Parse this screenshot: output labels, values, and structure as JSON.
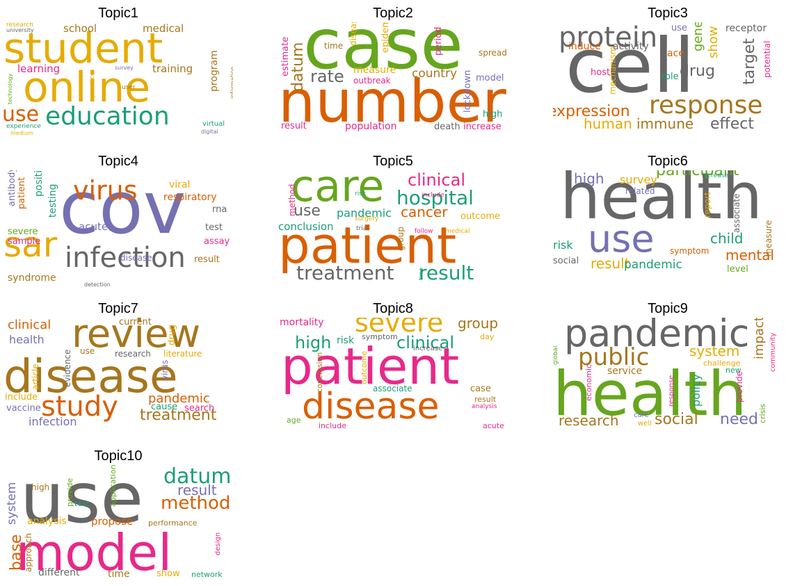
{
  "colors": {
    "orange": "#d95f02",
    "purple": "#7570b3",
    "pink": "#e7298a",
    "green": "#66a61e",
    "gold": "#e6ab02",
    "brown": "#a6761d",
    "gray": "#666666",
    "teal": "#1b9e77"
  },
  "topics": [
    {
      "title": "Topic1",
      "words": [
        {
          "t": "student",
          "c": "gold",
          "s": 60
        },
        {
          "t": "online",
          "c": "gold",
          "s": 60
        },
        {
          "t": "education",
          "c": "teal",
          "s": 36
        },
        {
          "t": "use",
          "c": "orange",
          "s": 30
        },
        {
          "t": "school",
          "c": "brown",
          "s": 15
        },
        {
          "t": "medical",
          "c": "brown",
          "s": 15
        },
        {
          "t": "training",
          "c": "brown",
          "s": 15
        },
        {
          "t": "learning",
          "c": "pink",
          "s": 15
        },
        {
          "t": "program",
          "c": "brown",
          "s": 14,
          "v": true
        },
        {
          "t": "research",
          "c": "gold",
          "s": 9
        },
        {
          "t": "university",
          "c": "gray",
          "s": 8
        },
        {
          "t": "technology",
          "c": "green",
          "s": 8,
          "v": true
        },
        {
          "t": "practice",
          "c": "gold",
          "s": 9,
          "v": true
        },
        {
          "t": "survey",
          "c": "purple",
          "s": 8
        },
        {
          "t": "user",
          "c": "brown",
          "s": 9
        },
        {
          "t": "information",
          "c": "brown",
          "s": 8,
          "v": true
        },
        {
          "t": "virtual",
          "c": "teal",
          "s": 10
        },
        {
          "t": "digital",
          "c": "purple",
          "s": 8
        },
        {
          "t": "experience",
          "c": "teal",
          "s": 9
        },
        {
          "t": "medium",
          "c": "gold",
          "s": 8
        }
      ]
    },
    {
      "title": "Topic2",
      "words": [
        {
          "t": "case",
          "c": "green",
          "s": 100
        },
        {
          "t": "number",
          "c": "orange",
          "s": 84
        },
        {
          "t": "rate",
          "c": "gray",
          "s": 24
        },
        {
          "t": "datum",
          "c": "brown",
          "s": 22,
          "v": true
        },
        {
          "t": "country",
          "c": "brown",
          "s": 17
        },
        {
          "t": "estimate",
          "c": "pink",
          "s": 13,
          "v": true
        },
        {
          "t": "time",
          "c": "brown",
          "s": 12
        },
        {
          "t": "disease",
          "c": "gold",
          "s": 12,
          "v": true
        },
        {
          "t": "epidemic",
          "c": "gold",
          "s": 13,
          "v": true
        },
        {
          "t": "period",
          "c": "pink",
          "s": 13,
          "v": true
        },
        {
          "t": "spread",
          "c": "brown",
          "s": 12
        },
        {
          "t": "measure",
          "c": "gold",
          "s": 14
        },
        {
          "t": "outbreak",
          "c": "pink",
          "s": 12
        },
        {
          "t": "model",
          "c": "purple",
          "s": 13
        },
        {
          "t": "lockdown",
          "c": "purple",
          "s": 13,
          "v": true
        },
        {
          "t": "high",
          "c": "teal",
          "s": 13
        },
        {
          "t": "result",
          "c": "pink",
          "s": 13
        },
        {
          "t": "population",
          "c": "pink",
          "s": 14
        },
        {
          "t": "death",
          "c": "gray",
          "s": 13
        },
        {
          "t": "increase",
          "c": "pink",
          "s": 13
        }
      ]
    },
    {
      "title": "Topic3",
      "words": [
        {
          "t": "cell",
          "c": "gray",
          "s": 108
        },
        {
          "t": "protein",
          "c": "gray",
          "s": 40
        },
        {
          "t": "response",
          "c": "brown",
          "s": 36
        },
        {
          "t": "expression",
          "c": "orange",
          "s": 22
        },
        {
          "t": "human",
          "c": "gold",
          "s": 20
        },
        {
          "t": "immune",
          "c": "brown",
          "s": 20
        },
        {
          "t": "effect",
          "c": "gray",
          "s": 22
        },
        {
          "t": "drug",
          "c": "gray",
          "s": 22
        },
        {
          "t": "target",
          "c": "gray",
          "s": 22,
          "v": true
        },
        {
          "t": "gene",
          "c": "green",
          "s": 18,
          "v": true
        },
        {
          "t": "show",
          "c": "gold",
          "s": 18,
          "v": true
        },
        {
          "t": "use",
          "c": "purple",
          "s": 13
        },
        {
          "t": "receptor",
          "c": "gray",
          "s": 14
        },
        {
          "t": "induce",
          "c": "orange",
          "s": 14
        },
        {
          "t": "activity",
          "c": "gray",
          "s": 14
        },
        {
          "t": "ace",
          "c": "orange",
          "s": 14
        },
        {
          "t": "mechanism",
          "c": "gold",
          "s": 12,
          "v": true
        },
        {
          "t": "host",
          "c": "pink",
          "s": 13
        },
        {
          "t": "role",
          "c": "teal",
          "s": 13
        },
        {
          "t": "potential",
          "c": "pink",
          "s": 12,
          "v": true
        }
      ]
    },
    {
      "title": "Topic4",
      "words": [
        {
          "t": "cov",
          "c": "purple",
          "s": 104
        },
        {
          "t": "sar",
          "c": "gold",
          "s": 50
        },
        {
          "t": "infection",
          "c": "gray",
          "s": 40
        },
        {
          "t": "virus",
          "c": "orange",
          "s": 38
        },
        {
          "t": "respiratory",
          "c": "orange",
          "s": 14
        },
        {
          "t": "viral",
          "c": "gold",
          "s": 14
        },
        {
          "t": "rna",
          "c": "gray",
          "s": 13
        },
        {
          "t": "test",
          "c": "gray",
          "s": 13
        },
        {
          "t": "assay",
          "c": "pink",
          "s": 13
        },
        {
          "t": "acute",
          "c": "purple",
          "s": 15
        },
        {
          "t": "result",
          "c": "brown",
          "s": 13
        },
        {
          "t": "disease",
          "c": "purple",
          "s": 12
        },
        {
          "t": "syndrome",
          "c": "brown",
          "s": 14
        },
        {
          "t": "detection",
          "c": "gray",
          "s": 8
        },
        {
          "t": "sample",
          "c": "pink",
          "s": 13
        },
        {
          "t": "severe",
          "c": "green",
          "s": 13
        },
        {
          "t": "antibody",
          "c": "purple",
          "s": 13,
          "v": true
        },
        {
          "t": "patient",
          "c": "orange",
          "s": 13,
          "v": true
        },
        {
          "t": "positive",
          "c": "teal",
          "s": 14,
          "v": true
        },
        {
          "t": "testing",
          "c": "teal",
          "s": 14,
          "v": true
        }
      ]
    },
    {
      "title": "Topic5",
      "words": [
        {
          "t": "patient",
          "c": "orange",
          "s": 72
        },
        {
          "t": "care",
          "c": "green",
          "s": 62
        },
        {
          "t": "hospital",
          "c": "teal",
          "s": 28
        },
        {
          "t": "clinical",
          "c": "pink",
          "s": 24
        },
        {
          "t": "treatment",
          "c": "gray",
          "s": 28
        },
        {
          "t": "result",
          "c": "teal",
          "s": 28
        },
        {
          "t": "use",
          "c": "gray",
          "s": 22
        },
        {
          "t": "cancer",
          "c": "orange",
          "s": 20
        },
        {
          "t": "pandemic",
          "c": "teal",
          "s": 16
        },
        {
          "t": "conclusion",
          "c": "teal",
          "s": 15
        },
        {
          "t": "outcome",
          "c": "gold",
          "s": 13
        },
        {
          "t": "method",
          "c": "pink",
          "s": 12,
          "v": true
        },
        {
          "t": "risk",
          "c": "teal",
          "s": 9
        },
        {
          "t": "include",
          "c": "pink",
          "s": 9
        },
        {
          "t": "surgery",
          "c": "gold",
          "s": 9
        },
        {
          "t": "trial",
          "c": "gray",
          "s": 9
        },
        {
          "t": "follow",
          "c": "pink",
          "s": 9
        },
        {
          "t": "medical",
          "c": "gold",
          "s": 9
        },
        {
          "t": "group",
          "c": "brown",
          "s": 12,
          "v": true
        },
        {
          "t": "time",
          "c": "teal",
          "s": 8,
          "v": true
        }
      ]
    },
    {
      "title": "Topic6",
      "words": [
        {
          "t": "health",
          "c": "gray",
          "s": 92
        },
        {
          "t": "use",
          "c": "purple",
          "s": 54
        },
        {
          "t": "participant",
          "c": "green",
          "s": 22
        },
        {
          "t": "mental",
          "c": "orange",
          "s": 20
        },
        {
          "t": "child",
          "c": "teal",
          "s": 20
        },
        {
          "t": "result",
          "c": "gold",
          "s": 20
        },
        {
          "t": "pandemic",
          "c": "teal",
          "s": 17
        },
        {
          "t": "high",
          "c": "purple",
          "s": 20
        },
        {
          "t": "survey",
          "c": "gold",
          "s": 16
        },
        {
          "t": "factor",
          "c": "purple",
          "s": 13
        },
        {
          "t": "anxiety",
          "c": "teal",
          "s": 13
        },
        {
          "t": "related",
          "c": "purple",
          "s": 12
        },
        {
          "t": "increase",
          "c": "teal",
          "s": 9
        },
        {
          "t": "report",
          "c": "gold",
          "s": 12,
          "v": true
        },
        {
          "t": "associate",
          "c": "gray",
          "s": 12,
          "v": true
        },
        {
          "t": "measure",
          "c": "brown",
          "s": 12,
          "v": true
        },
        {
          "t": "risk",
          "c": "teal",
          "s": 16
        },
        {
          "t": "social",
          "c": "gray",
          "s": 13
        },
        {
          "t": "symptom",
          "c": "orange",
          "s": 12
        },
        {
          "t": "level",
          "c": "green",
          "s": 13
        }
      ]
    },
    {
      "title": "Topic7",
      "words": [
        {
          "t": "disease",
          "c": "brown",
          "s": 66
        },
        {
          "t": "review",
          "c": "brown",
          "s": 56
        },
        {
          "t": "study",
          "c": "orange",
          "s": 40
        },
        {
          "t": "treatment",
          "c": "brown",
          "s": 22
        },
        {
          "t": "pandemic",
          "c": "orange",
          "s": 18
        },
        {
          "t": "clinical",
          "c": "orange",
          "s": 18
        },
        {
          "t": "health",
          "c": "purple",
          "s": 16
        },
        {
          "t": "infection",
          "c": "purple",
          "s": 16
        },
        {
          "t": "current",
          "c": "brown",
          "s": 13
        },
        {
          "t": "drug",
          "c": "gold",
          "s": 13,
          "v": true
        },
        {
          "t": "use",
          "c": "brown",
          "s": 12
        },
        {
          "t": "evidence",
          "c": "gray",
          "s": 12,
          "v": true
        },
        {
          "t": "article",
          "c": "gold",
          "s": 12,
          "v": true
        },
        {
          "t": "research",
          "c": "gray",
          "s": 12
        },
        {
          "t": "literature",
          "c": "gold",
          "s": 12
        },
        {
          "t": "virus",
          "c": "purple",
          "s": 12,
          "v": true
        },
        {
          "t": "include",
          "c": "gold",
          "s": 13
        },
        {
          "t": "vaccine",
          "c": "purple",
          "s": 13
        },
        {
          "t": "cause",
          "c": "teal",
          "s": 13
        },
        {
          "t": "search",
          "c": "pink",
          "s": 13
        }
      ]
    },
    {
      "title": "Topic8",
      "words": [
        {
          "t": "patient",
          "c": "pink",
          "s": 72
        },
        {
          "t": "disease",
          "c": "orange",
          "s": 52
        },
        {
          "t": "severe",
          "c": "gold",
          "s": 38
        },
        {
          "t": "clinical",
          "c": "teal",
          "s": 24
        },
        {
          "t": "high",
          "c": "teal",
          "s": 24
        },
        {
          "t": "group",
          "c": "brown",
          "s": 20
        },
        {
          "t": "mortality",
          "c": "pink",
          "s": 14
        },
        {
          "t": "risk",
          "c": "teal",
          "s": 14
        },
        {
          "t": "symptom",
          "c": "gray",
          "s": 11
        },
        {
          "t": "day",
          "c": "gold",
          "s": 11
        },
        {
          "t": "increase",
          "c": "gray",
          "s": 10
        },
        {
          "t": "conclusion",
          "c": "brown",
          "s": 11,
          "v": true
        },
        {
          "t": "outcome",
          "c": "gold",
          "s": 11,
          "v": true
        },
        {
          "t": "associate",
          "c": "teal",
          "s": 12
        },
        {
          "t": "case",
          "c": "brown",
          "s": 13
        },
        {
          "t": "result",
          "c": "brown",
          "s": 11
        },
        {
          "t": "analysis",
          "c": "pink",
          "s": 9
        },
        {
          "t": "age",
          "c": "green",
          "s": 11
        },
        {
          "t": "include",
          "c": "pink",
          "s": 11
        },
        {
          "t": "acute",
          "c": "pink",
          "s": 11
        }
      ]
    },
    {
      "title": "Topic9",
      "words": [
        {
          "t": "health",
          "c": "green",
          "s": 88
        },
        {
          "t": "pandemic",
          "c": "gray",
          "s": 54
        },
        {
          "t": "public",
          "c": "brown",
          "s": 34
        },
        {
          "t": "social",
          "c": "brown",
          "s": 22
        },
        {
          "t": "need",
          "c": "purple",
          "s": 22
        },
        {
          "t": "research",
          "c": "brown",
          "s": 20
        },
        {
          "t": "system",
          "c": "gold",
          "s": 20
        },
        {
          "t": "impact",
          "c": "brown",
          "s": 18,
          "v": true
        },
        {
          "t": "policy",
          "c": "teal",
          "s": 16,
          "v": true
        },
        {
          "t": "service",
          "c": "brown",
          "s": 14
        },
        {
          "t": "challenge",
          "c": "gold",
          "s": 11
        },
        {
          "t": "new",
          "c": "teal",
          "s": 11
        },
        {
          "t": "global",
          "c": "green",
          "s": 9,
          "v": true
        },
        {
          "t": "economic",
          "c": "pink",
          "s": 11,
          "v": true
        },
        {
          "t": "response",
          "c": "pink",
          "s": 10,
          "v": true
        },
        {
          "t": "care",
          "c": "purple",
          "s": 10
        },
        {
          "t": "well",
          "c": "gold",
          "s": 10
        },
        {
          "t": "provide",
          "c": "pink",
          "s": 12,
          "v": true
        },
        {
          "t": "crisis",
          "c": "green",
          "s": 11,
          "v": true
        },
        {
          "t": "community",
          "c": "pink",
          "s": 10,
          "v": true
        }
      ]
    },
    {
      "title": "Topic10",
      "words": [
        {
          "t": "use",
          "c": "gray",
          "s": 100
        },
        {
          "t": "model",
          "c": "pink",
          "s": 72
        },
        {
          "t": "datum",
          "c": "teal",
          "s": 30
        },
        {
          "t": "method",
          "c": "orange",
          "s": 26
        },
        {
          "t": "result",
          "c": "purple",
          "s": 20
        },
        {
          "t": "propose",
          "c": "orange",
          "s": 15
        },
        {
          "t": "analysis",
          "c": "gold",
          "s": 14
        },
        {
          "t": "system",
          "c": "purple",
          "s": 17,
          "v": true
        },
        {
          "t": "high",
          "c": "brown",
          "s": 12
        },
        {
          "t": "provide",
          "c": "green",
          "s": 11,
          "v": true
        },
        {
          "t": "test",
          "c": "teal",
          "s": 11
        },
        {
          "t": "application",
          "c": "green",
          "s": 11,
          "v": true
        },
        {
          "t": "performance",
          "c": "brown",
          "s": 11
        },
        {
          "t": "base",
          "c": "orange",
          "s": 22,
          "v": true
        },
        {
          "t": "approach",
          "c": "brown",
          "s": 12,
          "v": true
        },
        {
          "t": "different",
          "c": "gray",
          "s": 14
        },
        {
          "t": "time",
          "c": "brown",
          "s": 14
        },
        {
          "t": "show",
          "c": "gold",
          "s": 13
        },
        {
          "t": "network",
          "c": "teal",
          "s": 11
        },
        {
          "t": "design",
          "c": "pink",
          "s": 10,
          "v": true
        }
      ]
    }
  ]
}
